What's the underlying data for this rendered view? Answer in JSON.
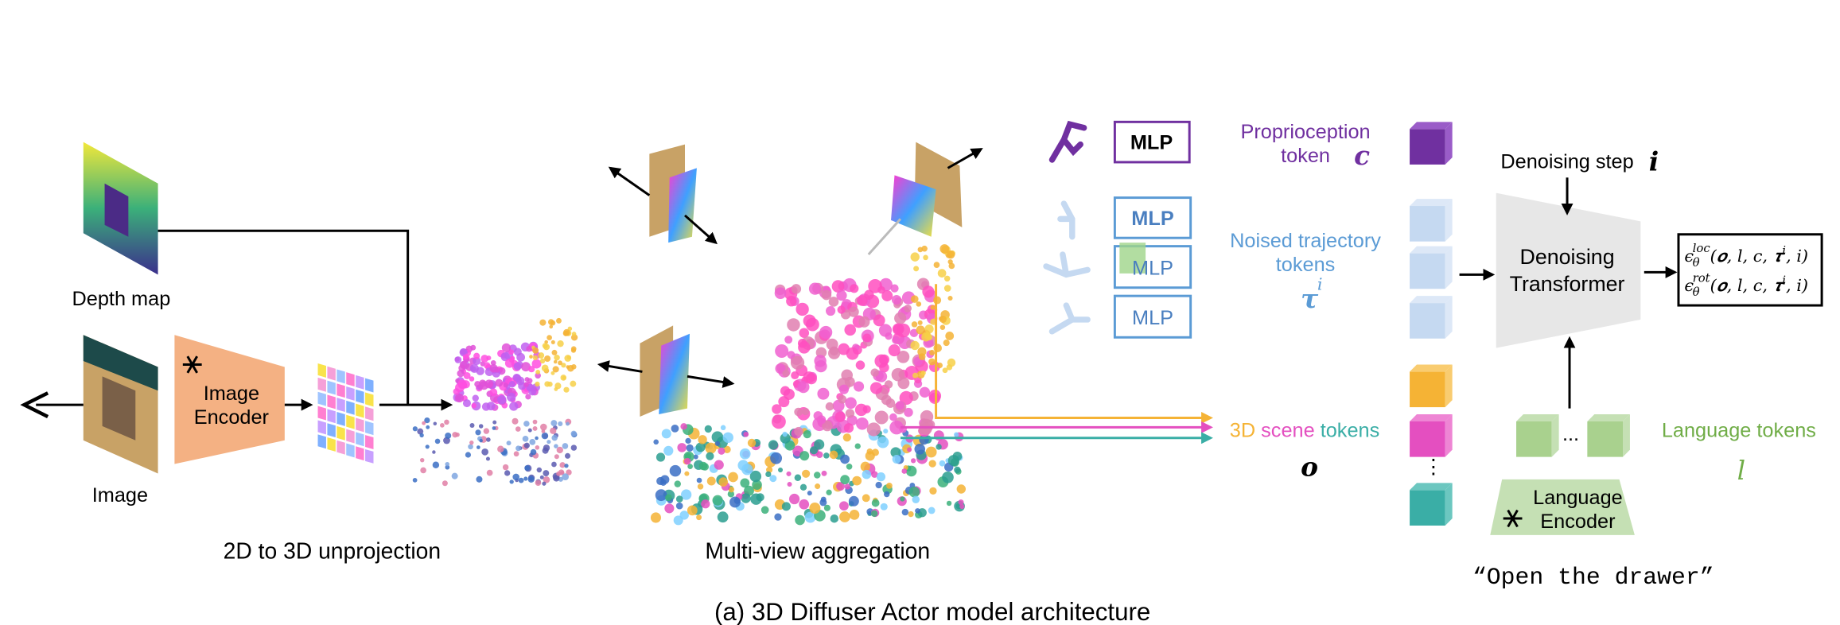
{
  "caption": "(a) 3D Diffuser Actor model architecture",
  "sections": {
    "unprojection": "2D to 3D unprojection",
    "aggregation": "Multi-view aggregation"
  },
  "inputs": {
    "depth_map": "Depth map",
    "image": "Image",
    "image_encoder": [
      "Image",
      "Encoder"
    ]
  },
  "mlps": [
    "MLP",
    "MLP",
    "MLP",
    "MLP"
  ],
  "tokens": {
    "proprioception": [
      "Proprioception",
      "token"
    ],
    "proprioception_symbol": "c",
    "noised": [
      "Noised trajectory",
      "tokens"
    ],
    "noised_symbol": "τ",
    "noised_sup": "i",
    "scene": [
      "3D",
      "scene",
      "tokens"
    ],
    "scene_symbol": "o",
    "language": "Language tokens",
    "language_symbol": "l",
    "vdots": "⋮",
    "dots": "..."
  },
  "denoising_step": "Denoising step",
  "step_symbol": "i",
  "transformer": [
    "Denoising",
    "Transformer"
  ],
  "language_encoder": [
    "Language",
    "Encoder"
  ],
  "instruction": "“Open the drawer”",
  "outputs": [
    {
      "symbol": "ϵ",
      "sub": "θ",
      "sup": "loc",
      "args": "(𝒐, 𝑙, 𝑐, 𝝉",
      "args_sup": "i",
      "close": ", 𝑖)"
    },
    {
      "symbol": "ϵ",
      "sub": "θ",
      "sup": "rot",
      "args": "(𝒐, 𝑙, 𝑐, 𝝉",
      "args_sup": "i",
      "close": ", 𝑖)"
    }
  ]
}
